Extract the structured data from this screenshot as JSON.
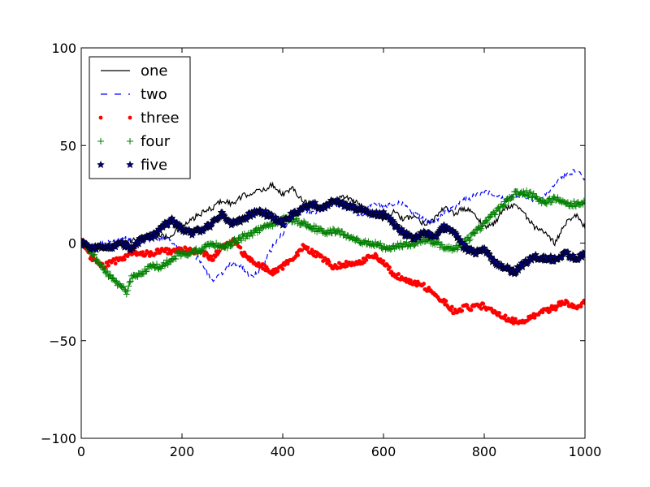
{
  "chart_data": {
    "type": "line",
    "title": "",
    "xlabel": "",
    "ylabel": "",
    "xlim": [
      0,
      1000
    ],
    "ylim": [
      -100,
      100
    ],
    "x_ticks": [
      0,
      200,
      400,
      600,
      800,
      1000
    ],
    "y_ticks": [
      -100,
      -50,
      0,
      50,
      100
    ],
    "x_tick_labels": [
      "0",
      "200",
      "400",
      "600",
      "800",
      "1000"
    ],
    "y_tick_labels": [
      "−100",
      "−50",
      "0",
      "50",
      "100"
    ],
    "grid": false,
    "legend": {
      "placement": "top-left"
    },
    "series": [
      {
        "name": "one",
        "style": "solid-line",
        "color": "#000000",
        "knots": [
          [
            0,
            0
          ],
          [
            20,
            -2
          ],
          [
            50,
            -3
          ],
          [
            80,
            0
          ],
          [
            110,
            2
          ],
          [
            140,
            5
          ],
          [
            170,
            3
          ],
          [
            200,
            8
          ],
          [
            230,
            14
          ],
          [
            260,
            18
          ],
          [
            280,
            22
          ],
          [
            300,
            20
          ],
          [
            320,
            24
          ],
          [
            340,
            26
          ],
          [
            360,
            27
          ],
          [
            380,
            30
          ],
          [
            400,
            25
          ],
          [
            420,
            28
          ],
          [
            440,
            22
          ],
          [
            460,
            20
          ],
          [
            480,
            18
          ],
          [
            500,
            22
          ],
          [
            520,
            24
          ],
          [
            540,
            22
          ],
          [
            560,
            18
          ],
          [
            580,
            15
          ],
          [
            600,
            12
          ],
          [
            620,
            16
          ],
          [
            640,
            12
          ],
          [
            660,
            14
          ],
          [
            680,
            10
          ],
          [
            700,
            12
          ],
          [
            720,
            18
          ],
          [
            740,
            15
          ],
          [
            760,
            18
          ],
          [
            780,
            15
          ],
          [
            800,
            8
          ],
          [
            820,
            10
          ],
          [
            840,
            18
          ],
          [
            860,
            20
          ],
          [
            880,
            15
          ],
          [
            900,
            8
          ],
          [
            920,
            5
          ],
          [
            940,
            0
          ],
          [
            960,
            10
          ],
          [
            980,
            15
          ],
          [
            1000,
            8
          ]
        ]
      },
      {
        "name": "two",
        "style": "dashed-line",
        "color": "#0000ff",
        "knots": [
          [
            0,
            0
          ],
          [
            20,
            -2
          ],
          [
            50,
            0
          ],
          [
            80,
            3
          ],
          [
            110,
            0
          ],
          [
            140,
            2
          ],
          [
            170,
            3
          ],
          [
            200,
            -3
          ],
          [
            220,
            -5
          ],
          [
            240,
            -10
          ],
          [
            260,
            -20
          ],
          [
            280,
            -15
          ],
          [
            300,
            -10
          ],
          [
            320,
            -12
          ],
          [
            340,
            -18
          ],
          [
            360,
            -12
          ],
          [
            380,
            -2
          ],
          [
            400,
            5
          ],
          [
            420,
            15
          ],
          [
            440,
            18
          ],
          [
            460,
            15
          ],
          [
            480,
            18
          ],
          [
            500,
            20
          ],
          [
            520,
            18
          ],
          [
            540,
            16
          ],
          [
            560,
            14
          ],
          [
            580,
            22
          ],
          [
            600,
            18
          ],
          [
            620,
            20
          ],
          [
            640,
            20
          ],
          [
            660,
            15
          ],
          [
            680,
            12
          ],
          [
            700,
            10
          ],
          [
            720,
            15
          ],
          [
            740,
            18
          ],
          [
            760,
            22
          ],
          [
            780,
            24
          ],
          [
            800,
            27
          ],
          [
            820,
            25
          ],
          [
            840,
            22
          ],
          [
            860,
            25
          ],
          [
            880,
            24
          ],
          [
            900,
            22
          ],
          [
            920,
            25
          ],
          [
            940,
            30
          ],
          [
            960,
            35
          ],
          [
            980,
            37
          ],
          [
            1000,
            33
          ]
        ]
      },
      {
        "name": "three",
        "style": "points",
        "color": "#ff0000",
        "knots": [
          [
            0,
            2
          ],
          [
            20,
            -8
          ],
          [
            40,
            -12
          ],
          [
            60,
            -10
          ],
          [
            80,
            -8
          ],
          [
            100,
            -5
          ],
          [
            120,
            -5
          ],
          [
            140,
            -6
          ],
          [
            160,
            -3
          ],
          [
            180,
            -5
          ],
          [
            200,
            -3
          ],
          [
            220,
            -4
          ],
          [
            240,
            -5
          ],
          [
            260,
            -8
          ],
          [
            280,
            -2
          ],
          [
            300,
            2
          ],
          [
            320,
            -5
          ],
          [
            340,
            -10
          ],
          [
            360,
            -12
          ],
          [
            380,
            -15
          ],
          [
            400,
            -12
          ],
          [
            420,
            -8
          ],
          [
            440,
            -2
          ],
          [
            460,
            -5
          ],
          [
            480,
            -8
          ],
          [
            500,
            -12
          ],
          [
            520,
            -11
          ],
          [
            540,
            -10
          ],
          [
            560,
            -9
          ],
          [
            580,
            -6
          ],
          [
            600,
            -10
          ],
          [
            620,
            -16
          ],
          [
            640,
            -18
          ],
          [
            660,
            -20
          ],
          [
            680,
            -22
          ],
          [
            700,
            -26
          ],
          [
            720,
            -30
          ],
          [
            740,
            -35
          ],
          [
            760,
            -33
          ],
          [
            780,
            -33
          ],
          [
            800,
            -32
          ],
          [
            820,
            -36
          ],
          [
            840,
            -38
          ],
          [
            860,
            -40
          ],
          [
            880,
            -40
          ],
          [
            900,
            -37
          ],
          [
            920,
            -35
          ],
          [
            940,
            -33
          ],
          [
            960,
            -30
          ],
          [
            980,
            -33
          ],
          [
            1000,
            -30
          ]
        ]
      },
      {
        "name": "four",
        "style": "plus-markers",
        "color": "#008000",
        "knots": [
          [
            0,
            0
          ],
          [
            20,
            -5
          ],
          [
            40,
            -12
          ],
          [
            60,
            -18
          ],
          [
            80,
            -22
          ],
          [
            90,
            -25
          ],
          [
            100,
            -18
          ],
          [
            120,
            -15
          ],
          [
            140,
            -12
          ],
          [
            160,
            -12
          ],
          [
            180,
            -8
          ],
          [
            200,
            -5
          ],
          [
            220,
            -5
          ],
          [
            240,
            -3
          ],
          [
            260,
            0
          ],
          [
            280,
            -3
          ],
          [
            300,
            0
          ],
          [
            320,
            3
          ],
          [
            340,
            5
          ],
          [
            360,
            8
          ],
          [
            380,
            10
          ],
          [
            400,
            12
          ],
          [
            420,
            12
          ],
          [
            440,
            10
          ],
          [
            460,
            8
          ],
          [
            480,
            6
          ],
          [
            500,
            6
          ],
          [
            520,
            5
          ],
          [
            540,
            2
          ],
          [
            560,
            0
          ],
          [
            580,
            0
          ],
          [
            600,
            -2
          ],
          [
            620,
            -2
          ],
          [
            640,
            -1
          ],
          [
            660,
            0
          ],
          [
            680,
            2
          ],
          [
            700,
            0
          ],
          [
            720,
            -2
          ],
          [
            740,
            -3
          ],
          [
            760,
            0
          ],
          [
            780,
            5
          ],
          [
            800,
            10
          ],
          [
            820,
            15
          ],
          [
            840,
            20
          ],
          [
            860,
            25
          ],
          [
            880,
            26
          ],
          [
            900,
            24
          ],
          [
            920,
            20
          ],
          [
            940,
            23
          ],
          [
            960,
            20
          ],
          [
            980,
            20
          ],
          [
            1000,
            21
          ]
        ]
      },
      {
        "name": "five",
        "style": "star-markers",
        "color": "#000080",
        "knots": [
          [
            0,
            0
          ],
          [
            20,
            -3
          ],
          [
            40,
            -2
          ],
          [
            60,
            -2
          ],
          [
            80,
            0
          ],
          [
            100,
            -3
          ],
          [
            120,
            2
          ],
          [
            140,
            3
          ],
          [
            160,
            8
          ],
          [
            180,
            12
          ],
          [
            200,
            7
          ],
          [
            220,
            5
          ],
          [
            240,
            7
          ],
          [
            260,
            10
          ],
          [
            280,
            15
          ],
          [
            300,
            10
          ],
          [
            320,
            12
          ],
          [
            340,
            15
          ],
          [
            360,
            16
          ],
          [
            380,
            13
          ],
          [
            400,
            10
          ],
          [
            420,
            15
          ],
          [
            440,
            18
          ],
          [
            460,
            20
          ],
          [
            480,
            18
          ],
          [
            500,
            22
          ],
          [
            520,
            20
          ],
          [
            540,
            18
          ],
          [
            560,
            17
          ],
          [
            580,
            15
          ],
          [
            600,
            15
          ],
          [
            620,
            10
          ],
          [
            640,
            5
          ],
          [
            660,
            3
          ],
          [
            680,
            5
          ],
          [
            700,
            3
          ],
          [
            720,
            8
          ],
          [
            740,
            5
          ],
          [
            760,
            -2
          ],
          [
            780,
            -5
          ],
          [
            800,
            -3
          ],
          [
            820,
            -10
          ],
          [
            840,
            -12
          ],
          [
            860,
            -15
          ],
          [
            880,
            -10
          ],
          [
            900,
            -7
          ],
          [
            920,
            -8
          ],
          [
            940,
            -8
          ],
          [
            960,
            -5
          ],
          [
            980,
            -8
          ],
          [
            1000,
            -6
          ]
        ]
      }
    ]
  }
}
